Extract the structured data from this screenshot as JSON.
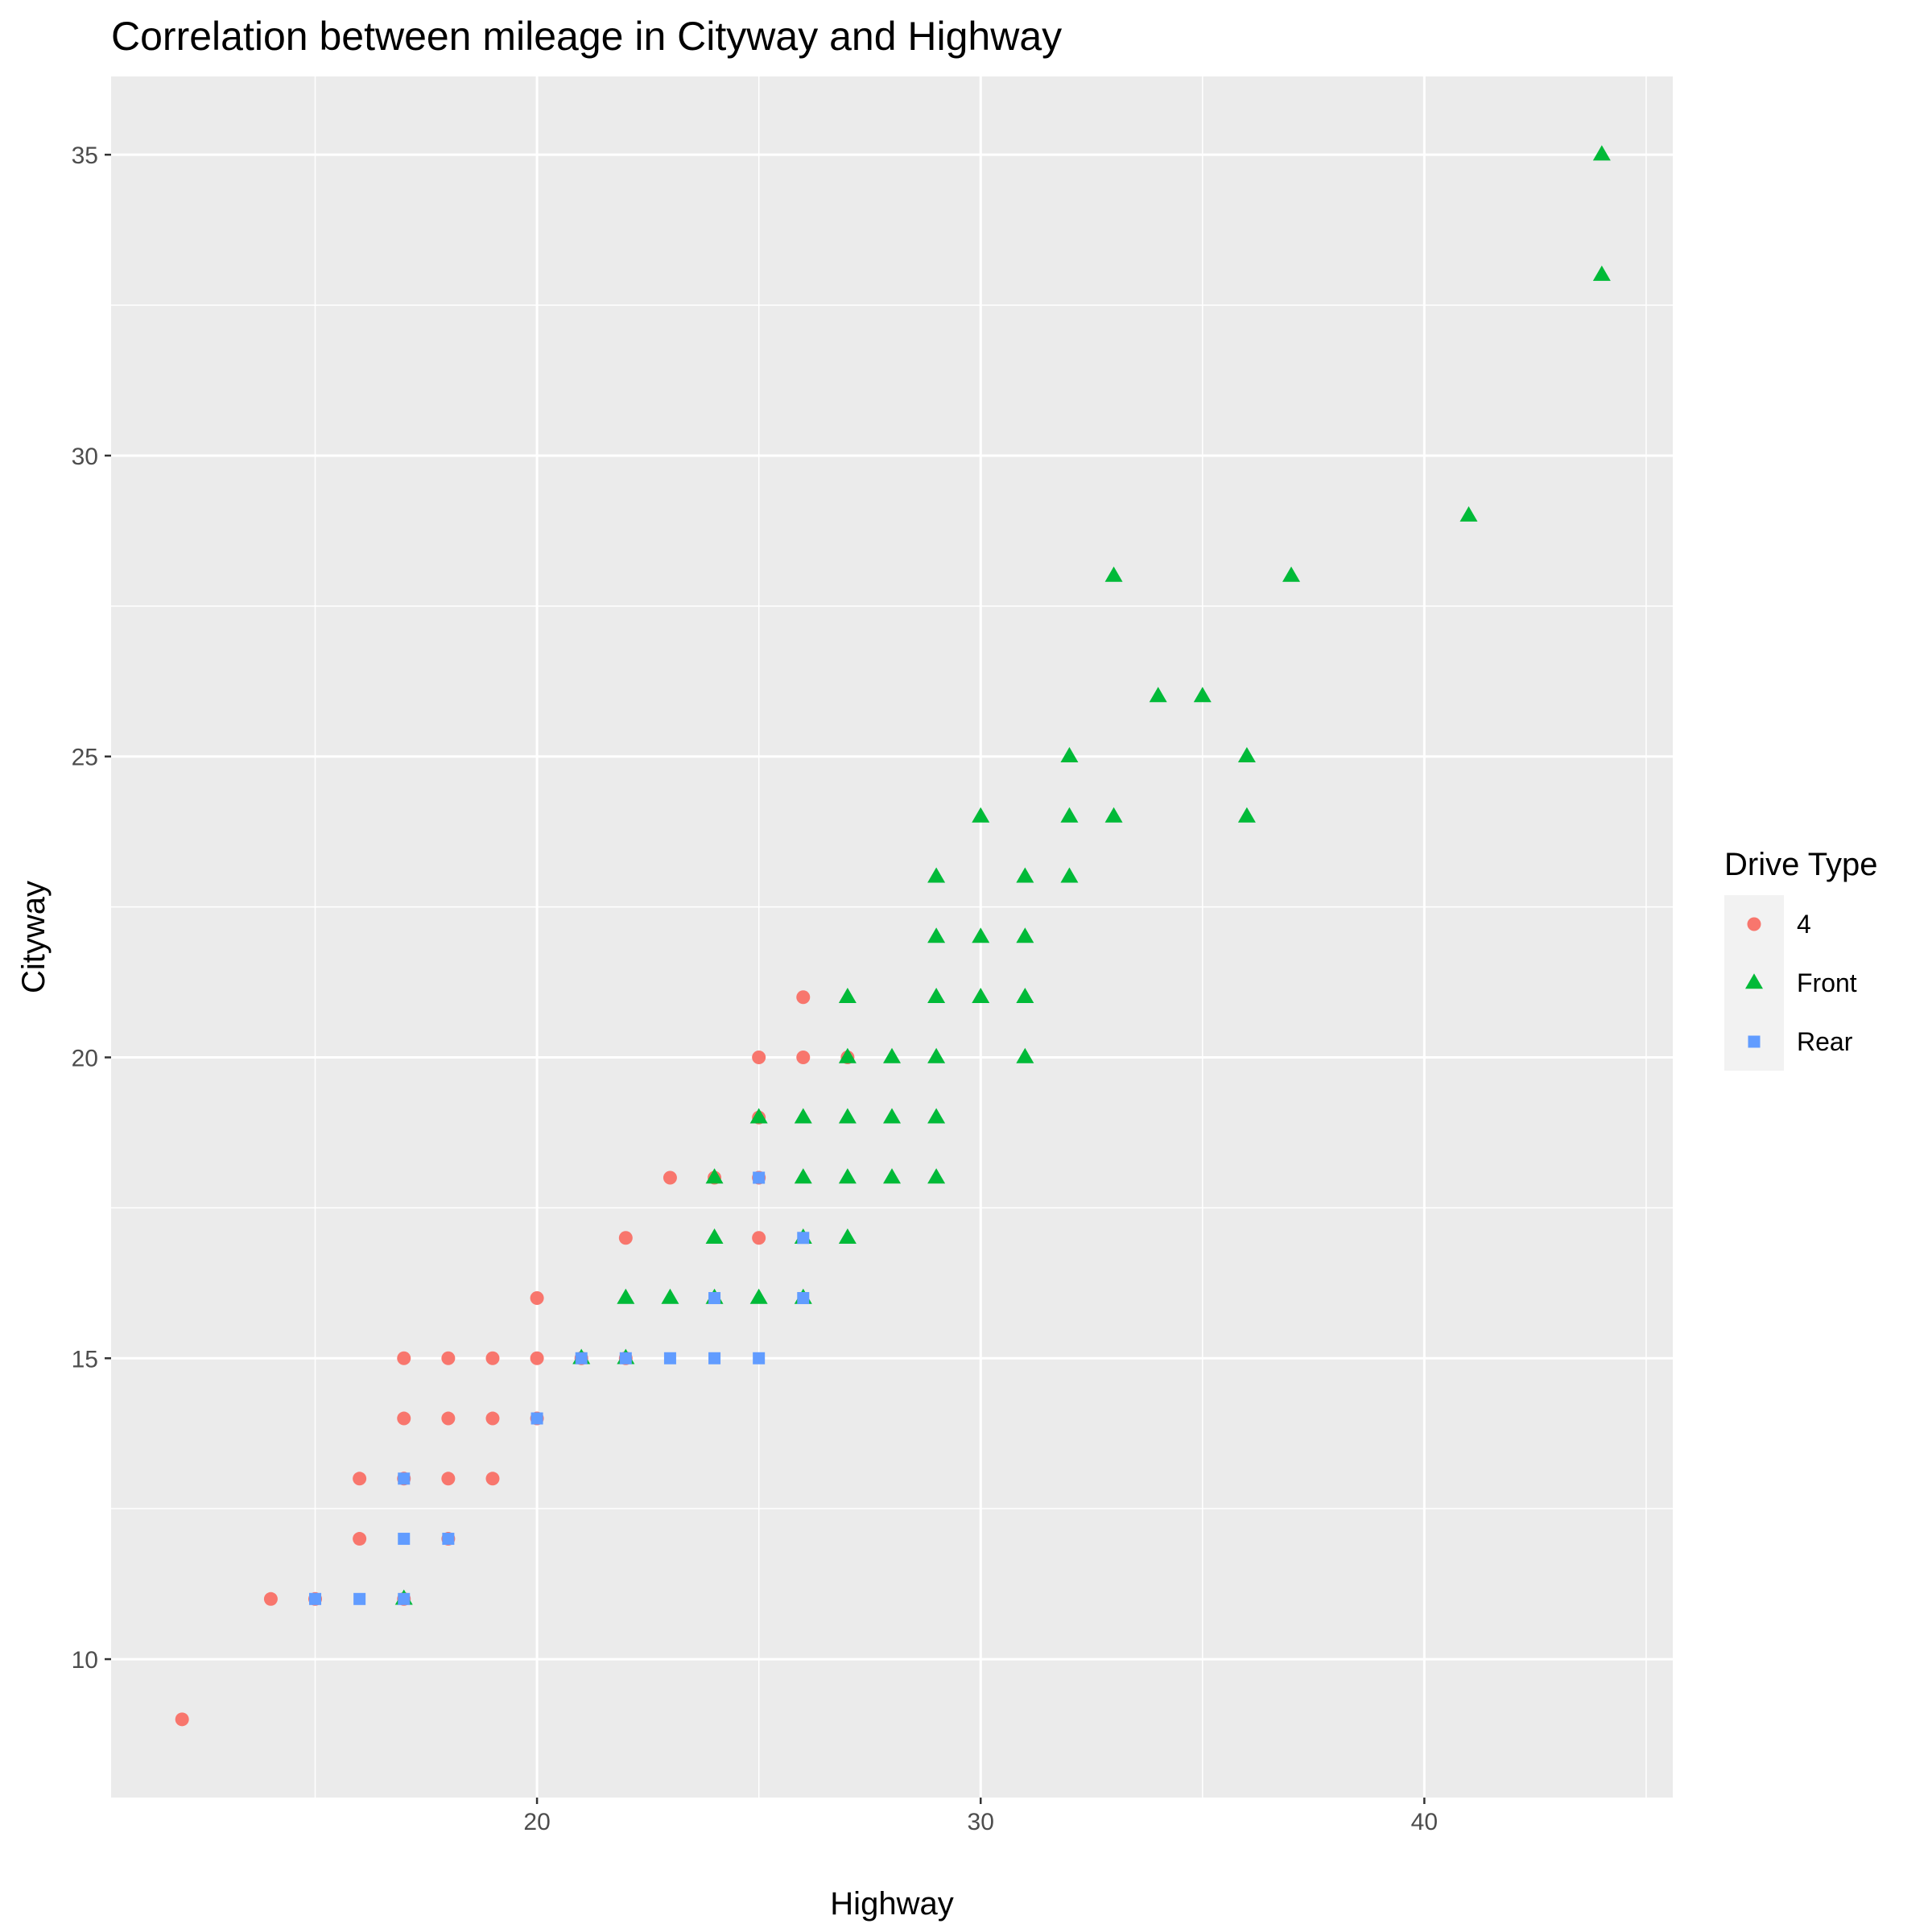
{
  "chart_data": {
    "type": "scatter",
    "title": "Correlation between mileage in Cityway and Highway",
    "xlabel": "Highway",
    "ylabel": "Cityway",
    "xlim": [
      10.4,
      45.6
    ],
    "ylim": [
      7.7,
      36.3
    ],
    "x_ticks": [
      20,
      30,
      40
    ],
    "y_ticks": [
      10,
      15,
      20,
      25,
      30,
      35
    ],
    "grid": true,
    "legend": {
      "title": "Drive Type",
      "position": "right"
    },
    "series": [
      {
        "name": "4",
        "color": "#F8766D",
        "shape": "circle",
        "points": [
          [
            12,
            9
          ],
          [
            14,
            11
          ],
          [
            15,
            11
          ],
          [
            16,
            12
          ],
          [
            16,
            13
          ],
          [
            17,
            11
          ],
          [
            17,
            13
          ],
          [
            17,
            14
          ],
          [
            17,
            15
          ],
          [
            18,
            12
          ],
          [
            18,
            13
          ],
          [
            18,
            14
          ],
          [
            18,
            15
          ],
          [
            19,
            13
          ],
          [
            19,
            14
          ],
          [
            19,
            15
          ],
          [
            20,
            14
          ],
          [
            20,
            15
          ],
          [
            20,
            16
          ],
          [
            21,
            15
          ],
          [
            22,
            15
          ],
          [
            22,
            17
          ],
          [
            23,
            18
          ],
          [
            24,
            18
          ],
          [
            25,
            17
          ],
          [
            25,
            18
          ],
          [
            25,
            19
          ],
          [
            25,
            20
          ],
          [
            26,
            20
          ],
          [
            26,
            21
          ],
          [
            27,
            20
          ]
        ]
      },
      {
        "name": "Front",
        "color": "#00BA38",
        "shape": "triangle",
        "points": [
          [
            17,
            11
          ],
          [
            21,
            15
          ],
          [
            22,
            15
          ],
          [
            22,
            16
          ],
          [
            23,
            16
          ],
          [
            24,
            16
          ],
          [
            24,
            17
          ],
          [
            24,
            18
          ],
          [
            25,
            16
          ],
          [
            25,
            19
          ],
          [
            26,
            16
          ],
          [
            26,
            17
          ],
          [
            26,
            18
          ],
          [
            26,
            19
          ],
          [
            27,
            17
          ],
          [
            27,
            18
          ],
          [
            27,
            19
          ],
          [
            27,
            20
          ],
          [
            27,
            21
          ],
          [
            28,
            18
          ],
          [
            28,
            19
          ],
          [
            28,
            20
          ],
          [
            29,
            18
          ],
          [
            29,
            19
          ],
          [
            29,
            20
          ],
          [
            29,
            21
          ],
          [
            29,
            22
          ],
          [
            29,
            23
          ],
          [
            30,
            21
          ],
          [
            30,
            22
          ],
          [
            30,
            24
          ],
          [
            31,
            20
          ],
          [
            31,
            21
          ],
          [
            31,
            22
          ],
          [
            31,
            23
          ],
          [
            32,
            23
          ],
          [
            32,
            24
          ],
          [
            32,
            25
          ],
          [
            33,
            24
          ],
          [
            33,
            28
          ],
          [
            34,
            26
          ],
          [
            35,
            26
          ],
          [
            36,
            24
          ],
          [
            36,
            25
          ],
          [
            37,
            28
          ],
          [
            41,
            29
          ],
          [
            44,
            33
          ],
          [
            44,
            35
          ]
        ]
      },
      {
        "name": "Rear",
        "color": "#619CFF",
        "shape": "square",
        "points": [
          [
            15,
            11
          ],
          [
            16,
            11
          ],
          [
            17,
            11
          ],
          [
            17,
            12
          ],
          [
            17,
            13
          ],
          [
            18,
            12
          ],
          [
            20,
            14
          ],
          [
            21,
            15
          ],
          [
            22,
            15
          ],
          [
            23,
            15
          ],
          [
            24,
            15
          ],
          [
            24,
            16
          ],
          [
            25,
            15
          ],
          [
            25,
            18
          ],
          [
            26,
            16
          ],
          [
            26,
            17
          ]
        ]
      }
    ]
  }
}
